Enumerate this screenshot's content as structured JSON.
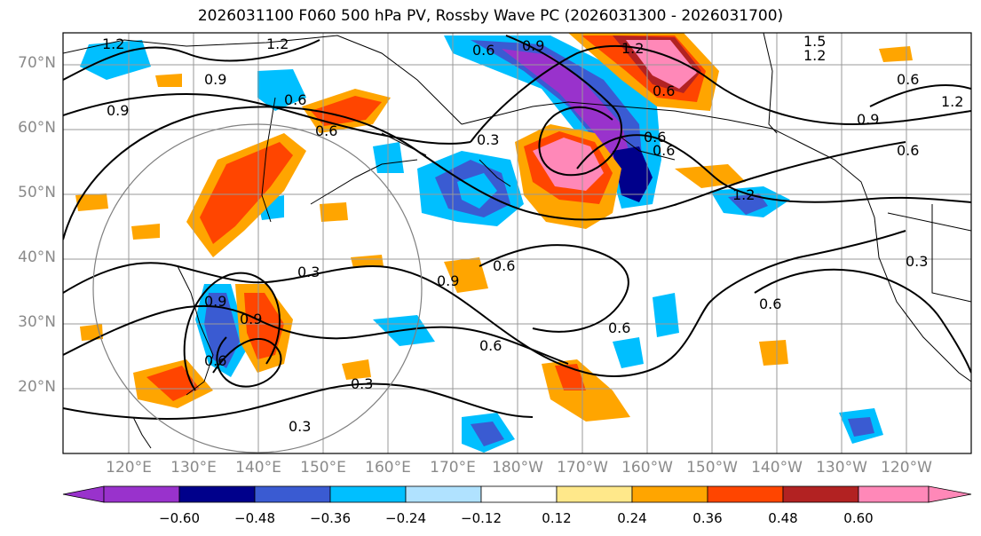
{
  "title": "2026031100 F060 500 hPa PV, Rossby Wave PC (2026031300 - 2026031700)",
  "lat_labels": [
    "70°N",
    "60°N",
    "50°N",
    "40°N",
    "30°N",
    "20°N"
  ],
  "lon_labels": [
    "120°E",
    "130°E",
    "140°E",
    "150°E",
    "160°E",
    "170°E",
    "180°W",
    "170°W",
    "160°W",
    "150°W",
    "140°W",
    "130°W",
    "120°W"
  ],
  "colorbar": {
    "ticks": [
      "−0.60",
      "−0.48",
      "−0.36",
      "−0.24",
      "−0.12",
      "0.12",
      "0.24",
      "0.36",
      "0.48",
      "0.60"
    ],
    "colors": [
      "#9932cc",
      "#00008b",
      "#3a5bd2",
      "#00bfff",
      "#b0e2ff",
      "#ffffff",
      "#ffe88a",
      "#ffa500",
      "#ff4500",
      "#b22222",
      "#ff88b8"
    ]
  },
  "contour_labels": [
    "1.2",
    "1.2",
    "0.9",
    "0.6",
    "0.9",
    "0.6",
    "0.6",
    "0.9",
    "1.2",
    "1.5",
    "1.2",
    "0.6",
    "1.2",
    "0.3",
    "0.6",
    "0.6",
    "0.9",
    "0.6",
    "1.2",
    "0.9",
    "0.6",
    "0.3",
    "0.6",
    "0.3",
    "0.9",
    "0.6",
    "0.6",
    "0.6",
    "0.3",
    "0.3",
    "0.9",
    "0.6"
  ],
  "colors": {
    "positive": "#ff4500",
    "negative": "#00bfff",
    "frame": "#000000",
    "grid": "#999999"
  }
}
